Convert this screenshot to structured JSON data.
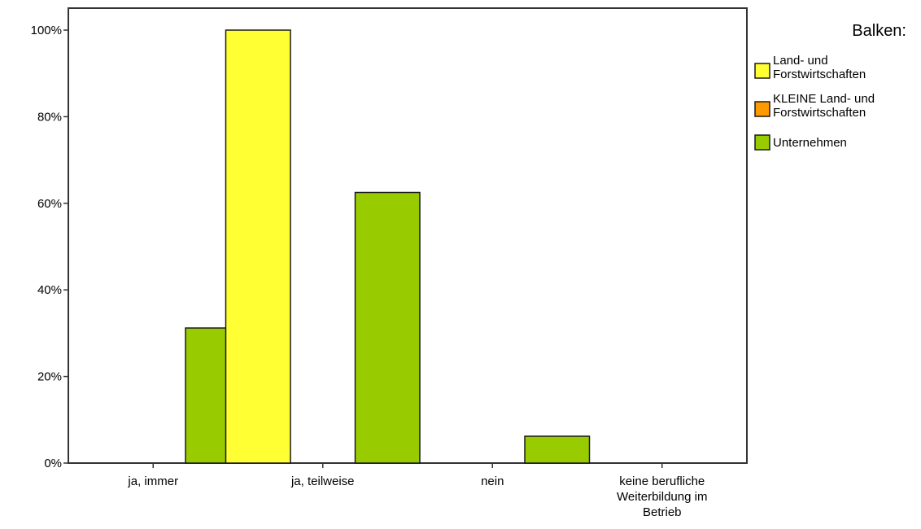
{
  "chart_data": {
    "type": "bar",
    "categories": [
      [
        "ja, immer"
      ],
      [
        "ja, teilweise"
      ],
      [
        "nein"
      ],
      [
        "keine berufliche",
        "Weiterbildung im",
        "Betrieb"
      ]
    ],
    "ylim": [
      0,
      100
    ],
    "yticks": [
      0,
      20,
      40,
      60,
      80,
      100
    ],
    "ytick_suffix": "%",
    "grid": false,
    "legend": {
      "title": "Balken:",
      "placement": "right"
    },
    "series": [
      {
        "name": [
          "Land- und",
          "Forstwirtschaften"
        ],
        "color": "#ffff33",
        "values": [
          0,
          100,
          0,
          0
        ]
      },
      {
        "name": [
          "KLEINE Land- und",
          "Forstwirtschaften"
        ],
        "color": "#ff9900",
        "values": [
          0,
          0,
          0,
          0
        ]
      },
      {
        "name": [
          "Unternehmen"
        ],
        "color": "#99cc00",
        "values": [
          31.2,
          62.5,
          6.2,
          0
        ]
      }
    ]
  }
}
